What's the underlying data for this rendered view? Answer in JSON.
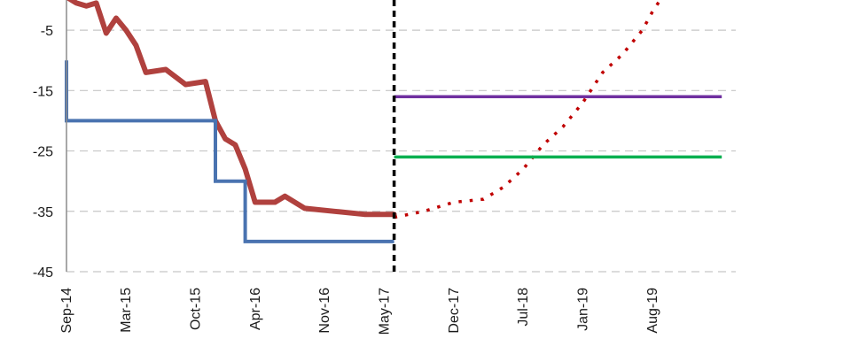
{
  "chart_data": {
    "type": "line",
    "title": "",
    "xlabel": "",
    "ylabel": "",
    "ylim": [
      -45,
      0
    ],
    "y_ticks": [
      -5,
      -15,
      -25,
      -35,
      -45
    ],
    "grid": true,
    "legend": "none",
    "x_ticks": [
      "Sep-14",
      "Mar-15",
      "Oct-15",
      "Apr-16",
      "Nov-16",
      "May-17",
      "Dec-17",
      "Jul-18",
      "Jan-19",
      "Aug-19"
    ],
    "divider": {
      "x": "2017-06-01",
      "style": "dashed",
      "color": "#000000"
    },
    "series": [
      {
        "style": "solid-thick",
        "color": "#b0413e",
        "points": [
          [
            "2014-09-01",
            0.5
          ],
          [
            "2014-10-01",
            -0.5
          ],
          [
            "2014-11-01",
            -1
          ],
          [
            "2014-12-01",
            -0.5
          ],
          [
            "2015-01-01",
            -5.5
          ],
          [
            "2015-02-01",
            -3
          ],
          [
            "2015-03-01",
            -5
          ],
          [
            "2015-04-01",
            -7.5
          ],
          [
            "2015-05-01",
            -12
          ],
          [
            "2015-07-01",
            -11.5
          ],
          [
            "2015-09-01",
            -14
          ],
          [
            "2015-11-01",
            -13.5
          ],
          [
            "2015-12-01",
            -20
          ],
          [
            "2016-01-01",
            -23
          ],
          [
            "2016-02-01",
            -24
          ],
          [
            "2016-03-01",
            -28
          ],
          [
            "2016-04-01",
            -33.5
          ],
          [
            "2016-06-01",
            -33.5
          ],
          [
            "2016-07-01",
            -32.5
          ],
          [
            "2016-09-01",
            -34.5
          ],
          [
            "2016-12-01",
            -35
          ],
          [
            "2017-03-01",
            -35.5
          ],
          [
            "2017-06-01",
            -35.5
          ]
        ]
      },
      {
        "style": "step",
        "color": "#4a73b0",
        "points": [
          [
            "2014-09-01",
            -10
          ],
          [
            "2014-09-01",
            -20
          ],
          [
            "2015-12-01",
            -20
          ],
          [
            "2015-12-01",
            -30
          ],
          [
            "2016-03-01",
            -30
          ],
          [
            "2016-03-01",
            -40
          ],
          [
            "2017-06-01",
            -40
          ]
        ]
      },
      {
        "style": "dotted",
        "color": "#c00000",
        "points": [
          [
            "2017-06-01",
            -36
          ],
          [
            "2017-09-01",
            -35
          ],
          [
            "2017-12-01",
            -33.5
          ],
          [
            "2018-03-01",
            -33
          ],
          [
            "2018-05-01",
            -31
          ],
          [
            "2018-07-01",
            -28
          ],
          [
            "2018-09-01",
            -24
          ],
          [
            "2018-11-01",
            -21
          ],
          [
            "2019-01-01",
            -17
          ],
          [
            "2019-03-01",
            -12
          ],
          [
            "2019-05-01",
            -9
          ],
          [
            "2019-07-01",
            -5
          ],
          [
            "2019-08-01",
            -2
          ],
          [
            "2019-09-01",
            0.5
          ]
        ]
      },
      {
        "style": "solid",
        "color": "#7030a0",
        "points": [
          [
            "2017-06-01",
            -16
          ],
          [
            "2020-03-01",
            -16
          ]
        ]
      },
      {
        "style": "solid",
        "color": "#00b050",
        "points": [
          [
            "2017-06-01",
            -26
          ],
          [
            "2020-03-01",
            -26
          ]
        ]
      }
    ]
  }
}
